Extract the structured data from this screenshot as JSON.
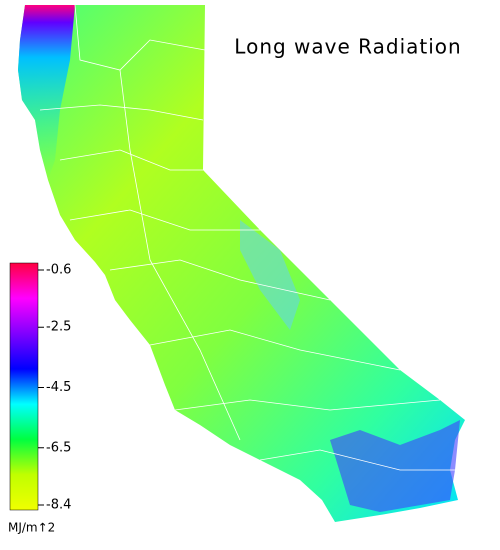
{
  "title": "Long wave Radiation",
  "colorbar": {
    "ticks": [
      -0.6,
      -2.5,
      -4.5,
      -6.5,
      -8.4
    ],
    "colors": [
      "#ff0040",
      "#ff00ff",
      "#8000ff",
      "#0000ff",
      "#00ffff",
      "#00ff40",
      "#c0ff00",
      "#f0ff00"
    ],
    "label": "MJ/m↑2"
  }
}
